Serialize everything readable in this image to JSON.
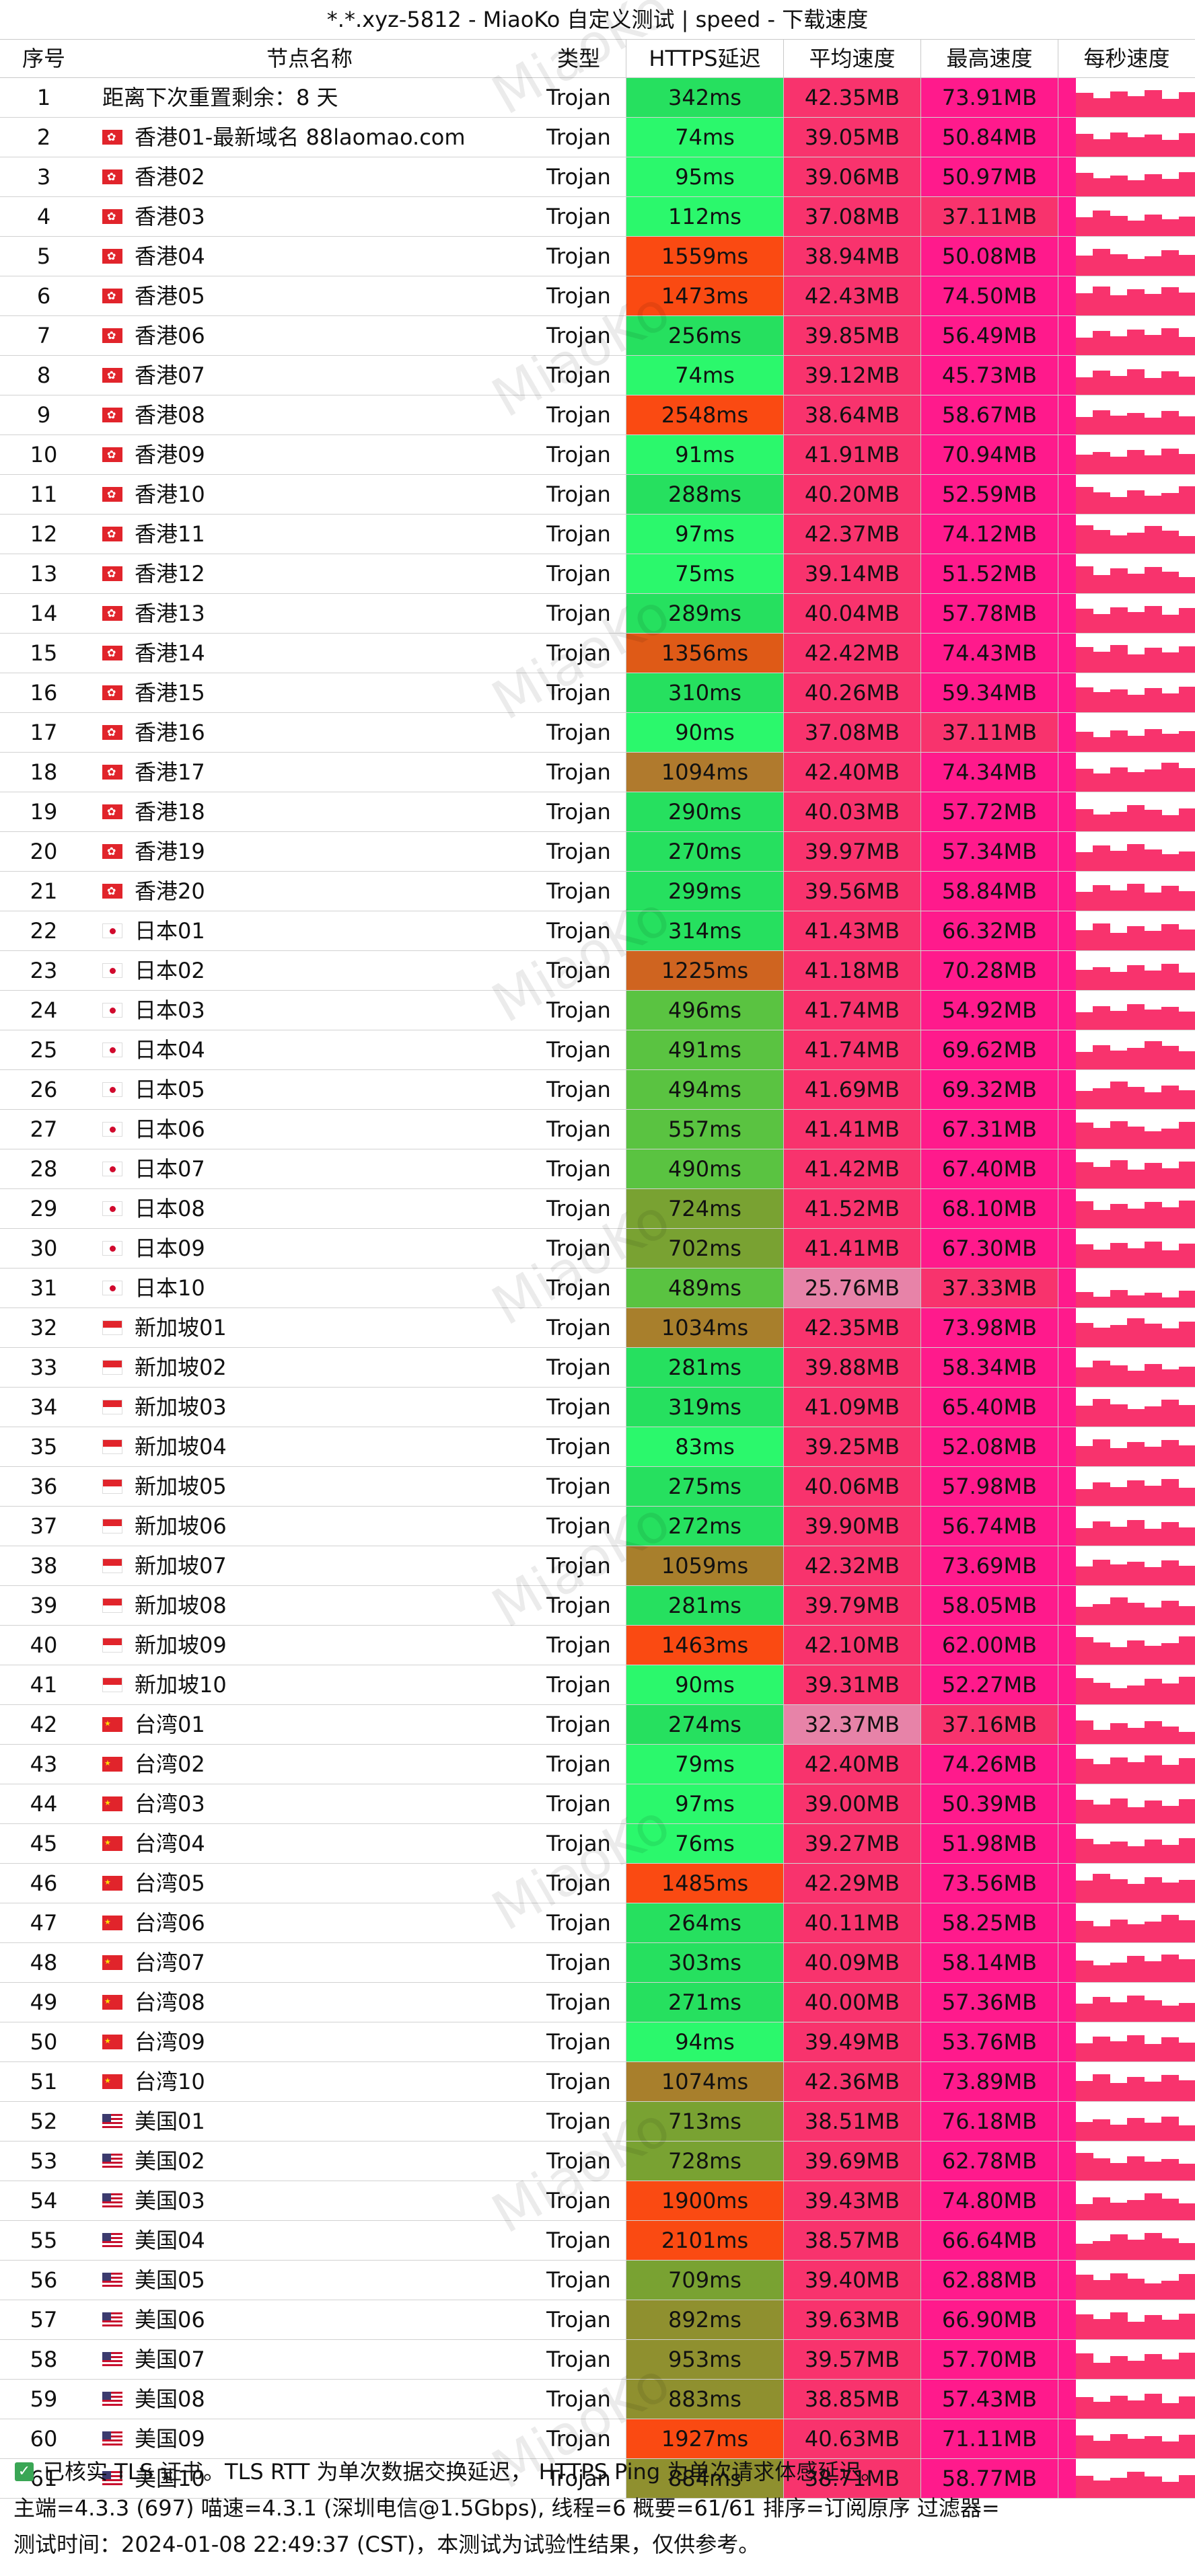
{
  "title": "*.*.xyz-5812 - MiaoKo 自定义测试 | speed - 下载速度",
  "headers": [
    "序号",
    "节点名称",
    "类型",
    "HTTPS延迟",
    "平均速度",
    "最高速度",
    "每秒速度"
  ],
  "watermark": "MiaoKo",
  "colors": {
    "avg_default": "#f8336d",
    "avg_low": "#e783a8",
    "max_high": "#ff1a8c",
    "max_mid": "#f8336d"
  },
  "rows": [
    {
      "no": "1",
      "flag": "",
      "name": "距离下次重置剩余：8 天",
      "type": "Trojan",
      "latency": "342ms",
      "lat_color": "#26e05f",
      "avg": "42.35MB",
      "max": "73.91MB"
    },
    {
      "no": "2",
      "flag": "hk",
      "name": "香港01-最新域名 88laomao.com",
      "type": "Trojan",
      "latency": "74ms",
      "lat_color": "#2bf86c",
      "avg": "39.05MB",
      "max": "50.84MB"
    },
    {
      "no": "3",
      "flag": "hk",
      "name": "香港02",
      "type": "Trojan",
      "latency": "95ms",
      "lat_color": "#2bf86c",
      "avg": "39.06MB",
      "max": "50.97MB"
    },
    {
      "no": "4",
      "flag": "hk",
      "name": "香港03",
      "type": "Trojan",
      "latency": "112ms",
      "lat_color": "#2bf86c",
      "avg": "37.08MB",
      "max": "37.11MB"
    },
    {
      "no": "5",
      "flag": "hk",
      "name": "香港04",
      "type": "Trojan",
      "latency": "1559ms",
      "lat_color": "#fa4a12",
      "avg": "38.94MB",
      "max": "50.08MB"
    },
    {
      "no": "6",
      "flag": "hk",
      "name": "香港05",
      "type": "Trojan",
      "latency": "1473ms",
      "lat_color": "#fa4a12",
      "avg": "42.43MB",
      "max": "74.50MB"
    },
    {
      "no": "7",
      "flag": "hk",
      "name": "香港06",
      "type": "Trojan",
      "latency": "256ms",
      "lat_color": "#26e05f",
      "avg": "39.85MB",
      "max": "56.49MB"
    },
    {
      "no": "8",
      "flag": "hk",
      "name": "香港07",
      "type": "Trojan",
      "latency": "74ms",
      "lat_color": "#2bf86c",
      "avg": "39.12MB",
      "max": "45.73MB"
    },
    {
      "no": "9",
      "flag": "hk",
      "name": "香港08",
      "type": "Trojan",
      "latency": "2548ms",
      "lat_color": "#fa4a12",
      "avg": "38.64MB",
      "max": "58.67MB"
    },
    {
      "no": "10",
      "flag": "hk",
      "name": "香港09",
      "type": "Trojan",
      "latency": "91ms",
      "lat_color": "#2bf86c",
      "avg": "41.91MB",
      "max": "70.94MB"
    },
    {
      "no": "11",
      "flag": "hk",
      "name": "香港10",
      "type": "Trojan",
      "latency": "288ms",
      "lat_color": "#26e05f",
      "avg": "40.20MB",
      "max": "52.59MB"
    },
    {
      "no": "12",
      "flag": "hk",
      "name": "香港11",
      "type": "Trojan",
      "latency": "97ms",
      "lat_color": "#2bf86c",
      "avg": "42.37MB",
      "max": "74.12MB"
    },
    {
      "no": "13",
      "flag": "hk",
      "name": "香港12",
      "type": "Trojan",
      "latency": "75ms",
      "lat_color": "#2bf86c",
      "avg": "39.14MB",
      "max": "51.52MB"
    },
    {
      "no": "14",
      "flag": "hk",
      "name": "香港13",
      "type": "Trojan",
      "latency": "289ms",
      "lat_color": "#26e05f",
      "avg": "40.04MB",
      "max": "57.78MB"
    },
    {
      "no": "15",
      "flag": "hk",
      "name": "香港14",
      "type": "Trojan",
      "latency": "1356ms",
      "lat_color": "#df5a17",
      "avg": "42.42MB",
      "max": "74.43MB"
    },
    {
      "no": "16",
      "flag": "hk",
      "name": "香港15",
      "type": "Trojan",
      "latency": "310ms",
      "lat_color": "#26e05f",
      "avg": "40.26MB",
      "max": "59.34MB"
    },
    {
      "no": "17",
      "flag": "hk",
      "name": "香港16",
      "type": "Trojan",
      "latency": "90ms",
      "lat_color": "#2bf86c",
      "avg": "37.08MB",
      "max": "37.11MB"
    },
    {
      "no": "18",
      "flag": "hk",
      "name": "香港17",
      "type": "Trojan",
      "latency": "1094ms",
      "lat_color": "#b07a2d",
      "avg": "42.40MB",
      "max": "74.34MB"
    },
    {
      "no": "19",
      "flag": "hk",
      "name": "香港18",
      "type": "Trojan",
      "latency": "290ms",
      "lat_color": "#26e05f",
      "avg": "40.03MB",
      "max": "57.72MB"
    },
    {
      "no": "20",
      "flag": "hk",
      "name": "香港19",
      "type": "Trojan",
      "latency": "270ms",
      "lat_color": "#26e05f",
      "avg": "39.97MB",
      "max": "57.34MB"
    },
    {
      "no": "21",
      "flag": "hk",
      "name": "香港20",
      "type": "Trojan",
      "latency": "299ms",
      "lat_color": "#26e05f",
      "avg": "39.56MB",
      "max": "58.84MB"
    },
    {
      "no": "22",
      "flag": "jp",
      "name": "日本01",
      "type": "Trojan",
      "latency": "314ms",
      "lat_color": "#26e05f",
      "avg": "41.43MB",
      "max": "66.32MB"
    },
    {
      "no": "23",
      "flag": "jp",
      "name": "日本02",
      "type": "Trojan",
      "latency": "1225ms",
      "lat_color": "#cf6420",
      "avg": "41.18MB",
      "max": "70.28MB"
    },
    {
      "no": "24",
      "flag": "jp",
      "name": "日本03",
      "type": "Trojan",
      "latency": "496ms",
      "lat_color": "#5ac341",
      "avg": "41.74MB",
      "max": "54.92MB"
    },
    {
      "no": "25",
      "flag": "jp",
      "name": "日本04",
      "type": "Trojan",
      "latency": "491ms",
      "lat_color": "#5ac341",
      "avg": "41.74MB",
      "max": "69.62MB"
    },
    {
      "no": "26",
      "flag": "jp",
      "name": "日本05",
      "type": "Trojan",
      "latency": "494ms",
      "lat_color": "#5ac341",
      "avg": "41.69MB",
      "max": "69.32MB"
    },
    {
      "no": "27",
      "flag": "jp",
      "name": "日本06",
      "type": "Trojan",
      "latency": "557ms",
      "lat_color": "#5ac341",
      "avg": "41.41MB",
      "max": "67.31MB"
    },
    {
      "no": "28",
      "flag": "jp",
      "name": "日本07",
      "type": "Trojan",
      "latency": "490ms",
      "lat_color": "#5ac341",
      "avg": "41.42MB",
      "max": "67.40MB"
    },
    {
      "no": "29",
      "flag": "jp",
      "name": "日本08",
      "type": "Trojan",
      "latency": "724ms",
      "lat_color": "#79a232",
      "avg": "41.52MB",
      "max": "68.10MB"
    },
    {
      "no": "30",
      "flag": "jp",
      "name": "日本09",
      "type": "Trojan",
      "latency": "702ms",
      "lat_color": "#79a232",
      "avg": "41.41MB",
      "max": "67.30MB"
    },
    {
      "no": "31",
      "flag": "jp",
      "name": "日本10",
      "type": "Trojan",
      "latency": "489ms",
      "lat_color": "#5ac341",
      "avg": "25.76MB",
      "max": "37.33MB"
    },
    {
      "no": "32",
      "flag": "sg",
      "name": "新加坡01",
      "type": "Trojan",
      "latency": "1034ms",
      "lat_color": "#a87f2c",
      "avg": "42.35MB",
      "max": "73.98MB"
    },
    {
      "no": "33",
      "flag": "sg",
      "name": "新加坡02",
      "type": "Trojan",
      "latency": "281ms",
      "lat_color": "#26e05f",
      "avg": "39.88MB",
      "max": "58.34MB"
    },
    {
      "no": "34",
      "flag": "sg",
      "name": "新加坡03",
      "type": "Trojan",
      "latency": "319ms",
      "lat_color": "#26e05f",
      "avg": "41.09MB",
      "max": "65.40MB"
    },
    {
      "no": "35",
      "flag": "sg",
      "name": "新加坡04",
      "type": "Trojan",
      "latency": "83ms",
      "lat_color": "#2bf86c",
      "avg": "39.25MB",
      "max": "52.08MB"
    },
    {
      "no": "36",
      "flag": "sg",
      "name": "新加坡05",
      "type": "Trojan",
      "latency": "275ms",
      "lat_color": "#26e05f",
      "avg": "40.06MB",
      "max": "57.98MB"
    },
    {
      "no": "37",
      "flag": "sg",
      "name": "新加坡06",
      "type": "Trojan",
      "latency": "272ms",
      "lat_color": "#26e05f",
      "avg": "39.90MB",
      "max": "56.74MB"
    },
    {
      "no": "38",
      "flag": "sg",
      "name": "新加坡07",
      "type": "Trojan",
      "latency": "1059ms",
      "lat_color": "#a87f2c",
      "avg": "42.32MB",
      "max": "73.69MB"
    },
    {
      "no": "39",
      "flag": "sg",
      "name": "新加坡08",
      "type": "Trojan",
      "latency": "281ms",
      "lat_color": "#26e05f",
      "avg": "39.79MB",
      "max": "58.05MB"
    },
    {
      "no": "40",
      "flag": "sg",
      "name": "新加坡09",
      "type": "Trojan",
      "latency": "1463ms",
      "lat_color": "#fa4a12",
      "avg": "42.10MB",
      "max": "62.00MB"
    },
    {
      "no": "41",
      "flag": "sg",
      "name": "新加坡10",
      "type": "Trojan",
      "latency": "90ms",
      "lat_color": "#2bf86c",
      "avg": "39.31MB",
      "max": "52.27MB"
    },
    {
      "no": "42",
      "flag": "cn",
      "name": "台湾01",
      "type": "Trojan",
      "latency": "274ms",
      "lat_color": "#26e05f",
      "avg": "32.37MB",
      "max": "37.16MB"
    },
    {
      "no": "43",
      "flag": "cn",
      "name": "台湾02",
      "type": "Trojan",
      "latency": "79ms",
      "lat_color": "#2bf86c",
      "avg": "42.40MB",
      "max": "74.26MB"
    },
    {
      "no": "44",
      "flag": "cn",
      "name": "台湾03",
      "type": "Trojan",
      "latency": "97ms",
      "lat_color": "#2bf86c",
      "avg": "39.00MB",
      "max": "50.39MB"
    },
    {
      "no": "45",
      "flag": "cn",
      "name": "台湾04",
      "type": "Trojan",
      "latency": "76ms",
      "lat_color": "#2bf86c",
      "avg": "39.27MB",
      "max": "51.98MB"
    },
    {
      "no": "46",
      "flag": "cn",
      "name": "台湾05",
      "type": "Trojan",
      "latency": "1485ms",
      "lat_color": "#fa4a12",
      "avg": "42.29MB",
      "max": "73.56MB"
    },
    {
      "no": "47",
      "flag": "cn",
      "name": "台湾06",
      "type": "Trojan",
      "latency": "264ms",
      "lat_color": "#26e05f",
      "avg": "40.11MB",
      "max": "58.25MB"
    },
    {
      "no": "48",
      "flag": "cn",
      "name": "台湾07",
      "type": "Trojan",
      "latency": "303ms",
      "lat_color": "#26e05f",
      "avg": "40.09MB",
      "max": "58.14MB"
    },
    {
      "no": "49",
      "flag": "cn",
      "name": "台湾08",
      "type": "Trojan",
      "latency": "271ms",
      "lat_color": "#26e05f",
      "avg": "40.00MB",
      "max": "57.36MB"
    },
    {
      "no": "50",
      "flag": "cn",
      "name": "台湾09",
      "type": "Trojan",
      "latency": "94ms",
      "lat_color": "#2bf86c",
      "avg": "39.49MB",
      "max": "53.76MB"
    },
    {
      "no": "51",
      "flag": "cn",
      "name": "台湾10",
      "type": "Trojan",
      "latency": "1074ms",
      "lat_color": "#a87f2c",
      "avg": "42.36MB",
      "max": "73.89MB"
    },
    {
      "no": "52",
      "flag": "us",
      "name": "美国01",
      "type": "Trojan",
      "latency": "713ms",
      "lat_color": "#79a232",
      "avg": "38.51MB",
      "max": "76.18MB"
    },
    {
      "no": "53",
      "flag": "us",
      "name": "美国02",
      "type": "Trojan",
      "latency": "728ms",
      "lat_color": "#79a232",
      "avg": "39.69MB",
      "max": "62.78MB"
    },
    {
      "no": "54",
      "flag": "us",
      "name": "美国03",
      "type": "Trojan",
      "latency": "1900ms",
      "lat_color": "#fa4a12",
      "avg": "39.43MB",
      "max": "74.80MB"
    },
    {
      "no": "55",
      "flag": "us",
      "name": "美国04",
      "type": "Trojan",
      "latency": "2101ms",
      "lat_color": "#fa4a12",
      "avg": "38.57MB",
      "max": "66.64MB"
    },
    {
      "no": "56",
      "flag": "us",
      "name": "美国05",
      "type": "Trojan",
      "latency": "709ms",
      "lat_color": "#79a232",
      "avg": "39.40MB",
      "max": "62.88MB"
    },
    {
      "no": "57",
      "flag": "us",
      "name": "美国06",
      "type": "Trojan",
      "latency": "892ms",
      "lat_color": "#8f902f",
      "avg": "39.63MB",
      "max": "66.90MB"
    },
    {
      "no": "58",
      "flag": "us",
      "name": "美国07",
      "type": "Trojan",
      "latency": "953ms",
      "lat_color": "#8f902f",
      "avg": "39.57MB",
      "max": "57.70MB"
    },
    {
      "no": "59",
      "flag": "us",
      "name": "美国08",
      "type": "Trojan",
      "latency": "883ms",
      "lat_color": "#8f902f",
      "avg": "38.85MB",
      "max": "57.43MB"
    },
    {
      "no": "60",
      "flag": "us",
      "name": "美国09",
      "type": "Trojan",
      "latency": "1927ms",
      "lat_color": "#fa4a12",
      "avg": "40.63MB",
      "max": "71.11MB"
    },
    {
      "no": "61",
      "flag": "us",
      "name": "美国10",
      "type": "Trojan",
      "latency": "884ms",
      "lat_color": "#8f902f",
      "avg": "38.71MB",
      "max": "58.77MB"
    }
  ],
  "footer": {
    "line1": "已核实 TLS 证书。TLS RTT 为单次数据交换延迟， HTTPS Ping 为单次请求体感延迟。",
    "line2": "主端=4.3.3 (697) 喵速=4.3.1 (深圳电信@1.5Gbps), 线程=6 概要=61/61 排序=订阅原序 过滤器=",
    "line3": "测试时间：2024-01-08 22:49:37 (CST)，本测试为试验性结果，仅供参考。"
  }
}
